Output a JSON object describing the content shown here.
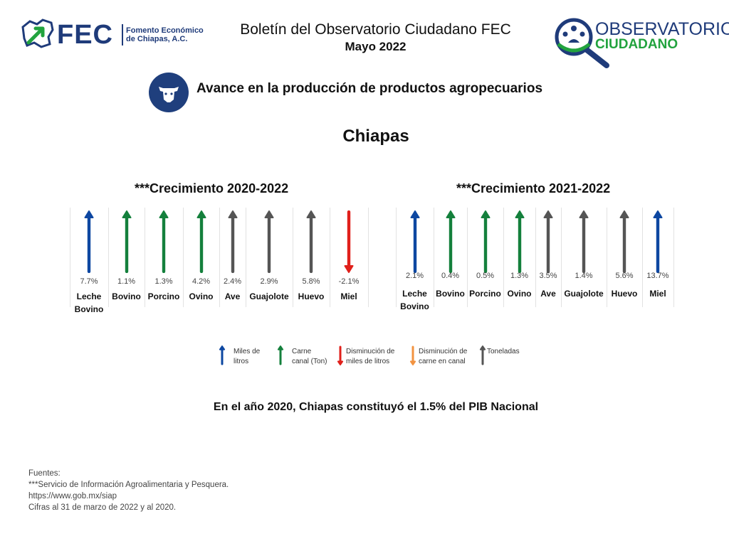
{
  "header": {
    "title": "Boletín del Observatorio Ciudadano FEC",
    "subtitle": "Mayo 2022",
    "fec_logo_text": "FEC",
    "fec_logo_sub_1": "Fomento Económico",
    "fec_logo_sub_2": "de Chiapas, A.C.",
    "obs_logo_1": "OBSERVATORIO",
    "obs_logo_2": "CIUDADANO"
  },
  "category": {
    "title": "Avance en la producción de productos agropecuarios",
    "icon": "cow-icon"
  },
  "region": "Chiapas",
  "colors": {
    "blue": "#0d47a1",
    "green": "#14803c",
    "red": "#e0201b",
    "orange": "#f29340",
    "gray": "#555555"
  },
  "chart_data": [
    {
      "type": "table",
      "title": "***Crecimiento 2020-2022",
      "items": [
        {
          "label_1": "Leche",
          "label_2": "Bovino",
          "value": "7.7%",
          "arrow": "blue",
          "direction": "up"
        },
        {
          "label_1": "Bovino",
          "label_2": "",
          "value": "1.1%",
          "arrow": "green",
          "direction": "up"
        },
        {
          "label_1": "Porcino",
          "label_2": "",
          "value": "1.3%",
          "arrow": "green",
          "direction": "up"
        },
        {
          "label_1": "Ovino",
          "label_2": "",
          "value": "4.2%",
          "arrow": "green",
          "direction": "up"
        },
        {
          "label_1": "Ave",
          "label_2": "",
          "value": "2.4%",
          "arrow": "gray",
          "direction": "up"
        },
        {
          "label_1": "Guajolote",
          "label_2": "",
          "value": "2.9%",
          "arrow": "gray",
          "direction": "up"
        },
        {
          "label_1": "Huevo",
          "label_2": "",
          "value": "5.8%",
          "arrow": "gray",
          "direction": "up"
        },
        {
          "label_1": "Miel",
          "label_2": "",
          "value": "-2.1%",
          "arrow": "red",
          "direction": "down"
        }
      ]
    },
    {
      "type": "table",
      "title": "***Crecimiento 2021-2022",
      "items": [
        {
          "label_1": "Leche",
          "label_2": "Bovino",
          "value": "2.1%",
          "arrow": "blue",
          "direction": "up"
        },
        {
          "label_1": "Bovino",
          "label_2": "",
          "value": "0.4%",
          "arrow": "green",
          "direction": "up"
        },
        {
          "label_1": "Porcino",
          "label_2": "",
          "value": "0.5%",
          "arrow": "green",
          "direction": "up"
        },
        {
          "label_1": "Ovino",
          "label_2": "",
          "value": "1.3%",
          "arrow": "green",
          "direction": "up"
        },
        {
          "label_1": "Ave",
          "label_2": "",
          "value": "3.5%",
          "arrow": "gray",
          "direction": "up"
        },
        {
          "label_1": "Guajolote",
          "label_2": "",
          "value": "1.4%",
          "arrow": "gray",
          "direction": "up"
        },
        {
          "label_1": "Huevo",
          "label_2": "",
          "value": "5.6%",
          "arrow": "gray",
          "direction": "up"
        },
        {
          "label_1": "Miel",
          "label_2": "",
          "value": "13.7%",
          "arrow": "blue",
          "direction": "up"
        }
      ]
    }
  ],
  "legend": [
    {
      "text_1": "Miles de",
      "text_2": "litros",
      "arrow": "blue",
      "direction": "up"
    },
    {
      "text_1": "Carne",
      "text_2": "canal (Ton)",
      "arrow": "green",
      "direction": "up"
    },
    {
      "text_1": "Disminución de",
      "text_2": "miles de litros",
      "arrow": "red",
      "direction": "down"
    },
    {
      "text_1": "Disminución de",
      "text_2": "carne en canal",
      "arrow": "orange",
      "direction": "down"
    },
    {
      "text_1": "Toneladas",
      "text_2": "",
      "arrow": "gray",
      "direction": "up"
    }
  ],
  "summary": "En el año 2020, Chiapas constituyó el 1.5% del PIB Nacional",
  "sources": {
    "line1": "Fuentes:",
    "line2": "***Servicio de Información Agroalimentaria y Pesquera.",
    "line3": "https://www.gob.mx/siap",
    "line4": "Cifras al 31 de marzo de 2022 y al 2020."
  }
}
